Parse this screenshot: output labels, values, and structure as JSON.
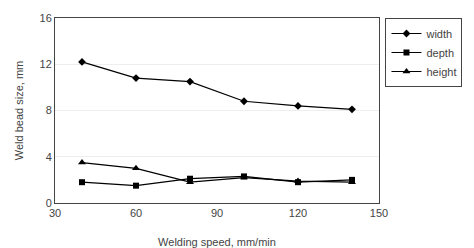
{
  "chart_data": {
    "type": "line",
    "xlabel": "Welding speed, mm/min",
    "ylabel": "Weld bead size, mm",
    "x": [
      40,
      60,
      80,
      100,
      120,
      140
    ],
    "series": [
      {
        "name": "width",
        "color": "#000000",
        "marker": "diamond",
        "values": [
          12.2,
          10.8,
          10.5,
          8.8,
          8.4,
          8.1
        ]
      },
      {
        "name": "depth",
        "color": "#000000",
        "marker": "square",
        "values": [
          1.8,
          1.5,
          2.1,
          2.3,
          1.8,
          2.0
        ]
      },
      {
        "name": "height",
        "color": "#000000",
        "marker": "triangle-up",
        "values": [
          3.5,
          3.0,
          1.8,
          2.2,
          1.9,
          1.8
        ]
      }
    ],
    "xlim": [
      30,
      150
    ],
    "ylim": [
      0,
      16
    ],
    "xticks": [
      30,
      60,
      90,
      120,
      150
    ],
    "yticks": [
      0,
      4,
      8,
      12,
      16
    ],
    "grid": "y",
    "legend": "right"
  }
}
